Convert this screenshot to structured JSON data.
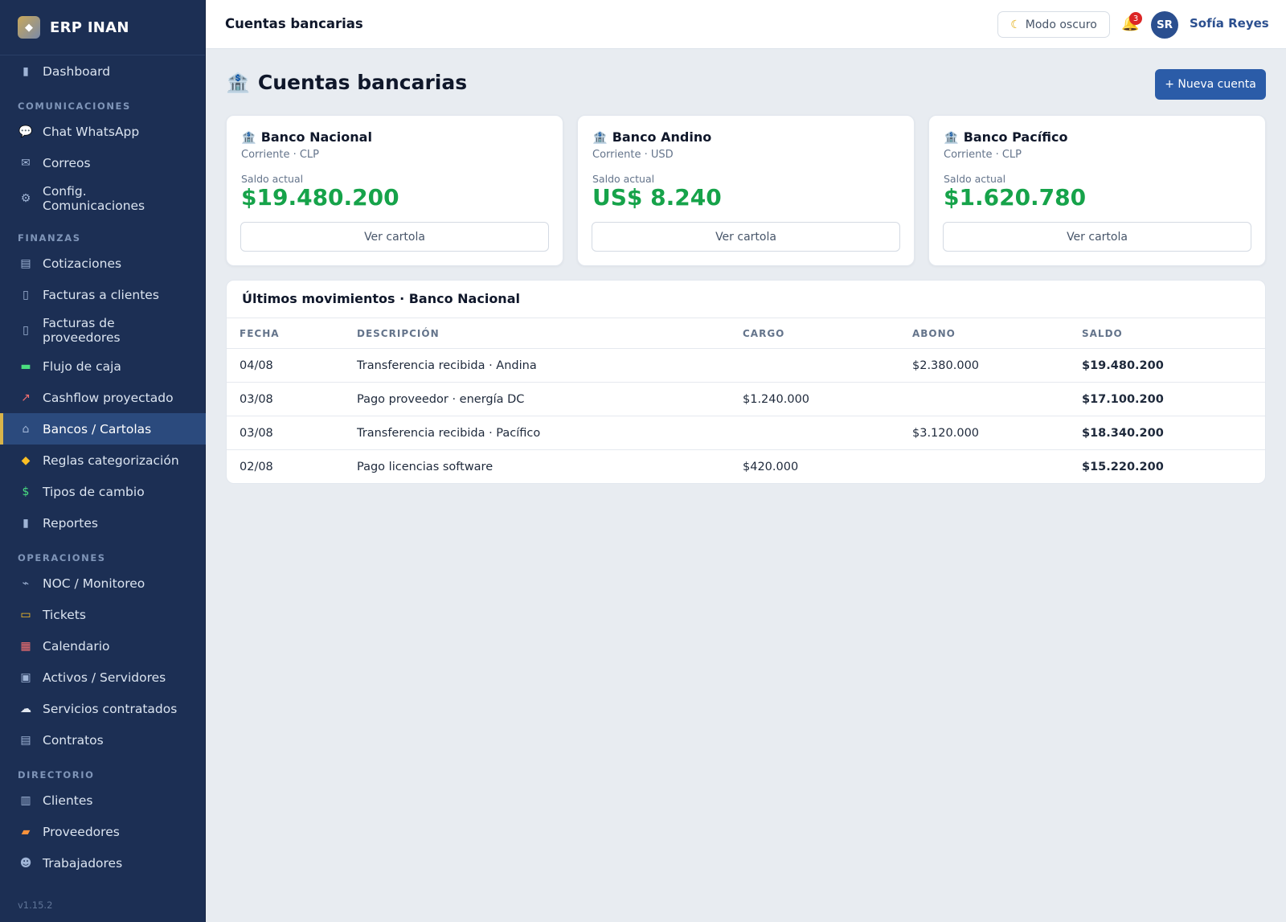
{
  "app": {
    "name": "ERP INAN",
    "version": "v1.15.2"
  },
  "sidebar": {
    "top": [
      {
        "label": "Dashboard",
        "icon": "bar-chart-icon"
      }
    ],
    "sections": [
      {
        "title": "COMUNICACIONES",
        "items": [
          {
            "label": "Chat WhatsApp",
            "icon": "speech-bubble-icon"
          },
          {
            "label": "Correos",
            "icon": "envelope-icon"
          },
          {
            "label": "Config. Comunicaciones",
            "icon": "gear-icon"
          }
        ]
      },
      {
        "title": "FINANZAS",
        "items": [
          {
            "label": "Cotizaciones",
            "icon": "receipt-icon"
          },
          {
            "label": "Facturas a clientes",
            "icon": "document-icon"
          },
          {
            "label": "Facturas de proveedores",
            "icon": "document-icon"
          },
          {
            "label": "Flujo de caja",
            "icon": "banknote-icon"
          },
          {
            "label": "Cashflow proyectado",
            "icon": "trend-chart-icon"
          },
          {
            "label": "Bancos / Cartolas",
            "icon": "bank-icon",
            "active": true
          },
          {
            "label": "Reglas categorización",
            "icon": "tag-icon"
          },
          {
            "label": "Tipos de cambio",
            "icon": "currency-exchange-icon"
          },
          {
            "label": "Reportes",
            "icon": "bar-chart-icon"
          }
        ]
      },
      {
        "title": "OPERACIONES",
        "items": [
          {
            "label": "NOC / Monitoreo",
            "icon": "satellite-icon"
          },
          {
            "label": "Tickets",
            "icon": "ticket-icon"
          },
          {
            "label": "Calendario",
            "icon": "calendar-icon"
          },
          {
            "label": "Activos / Servidores",
            "icon": "monitor-icon"
          },
          {
            "label": "Servicios contratados",
            "icon": "cloud-icon"
          },
          {
            "label": "Contratos",
            "icon": "contract-icon"
          }
        ]
      },
      {
        "title": "DIRECTORIO",
        "items": [
          {
            "label": "Clientes",
            "icon": "building-icon"
          },
          {
            "label": "Proveedores",
            "icon": "truck-icon"
          },
          {
            "label": "Trabajadores",
            "icon": "people-icon"
          }
        ]
      }
    ]
  },
  "topbar": {
    "title": "Cuentas bancarias",
    "dark_mode_label": "Modo oscuro",
    "notifications_count": "3",
    "user_initials": "SR",
    "user_name": "Sofía Reyes"
  },
  "page": {
    "title": "Cuentas bancarias",
    "new_button_label": "+ Nueva cuenta"
  },
  "accounts": [
    {
      "bank": "Banco Nacional",
      "type": "Corriente · CLP",
      "balance_label": "Saldo actual",
      "balance": "$19.480.200",
      "button": "Ver cartola"
    },
    {
      "bank": "Banco Andino",
      "type": "Corriente · USD",
      "balance_label": "Saldo actual",
      "balance": "US$ 8.240",
      "button": "Ver cartola"
    },
    {
      "bank": "Banco Pacífico",
      "type": "Corriente · CLP",
      "balance_label": "Saldo actual",
      "balance": "$1.620.780",
      "button": "Ver cartola"
    }
  ],
  "movements": {
    "title": "Últimos movimientos · Banco Nacional",
    "columns": [
      "FECHA",
      "DESCRIPCIÓN",
      "CARGO",
      "ABONO",
      "SALDO"
    ],
    "rows": [
      {
        "fecha": "04/08",
        "descripcion": "Transferencia recibida · Andina",
        "cargo": "",
        "abono": "$2.380.000",
        "saldo": "$19.480.200"
      },
      {
        "fecha": "03/08",
        "descripcion": "Pago proveedor · energía DC",
        "cargo": "$1.240.000",
        "abono": "",
        "saldo": "$17.100.200"
      },
      {
        "fecha": "03/08",
        "descripcion": "Transferencia recibida · Pacífico",
        "cargo": "",
        "abono": "$3.120.000",
        "saldo": "$18.340.200"
      },
      {
        "fecha": "02/08",
        "descripcion": "Pago licencias software",
        "cargo": "$420.000",
        "abono": "",
        "saldo": "$15.220.200"
      }
    ]
  },
  "colors": {
    "sidebar_bg": "#1c2f54",
    "active_accent": "#d8b44a",
    "primary": "#2b5ca8",
    "positive": "#16a34a",
    "negative": "#dc2626"
  }
}
